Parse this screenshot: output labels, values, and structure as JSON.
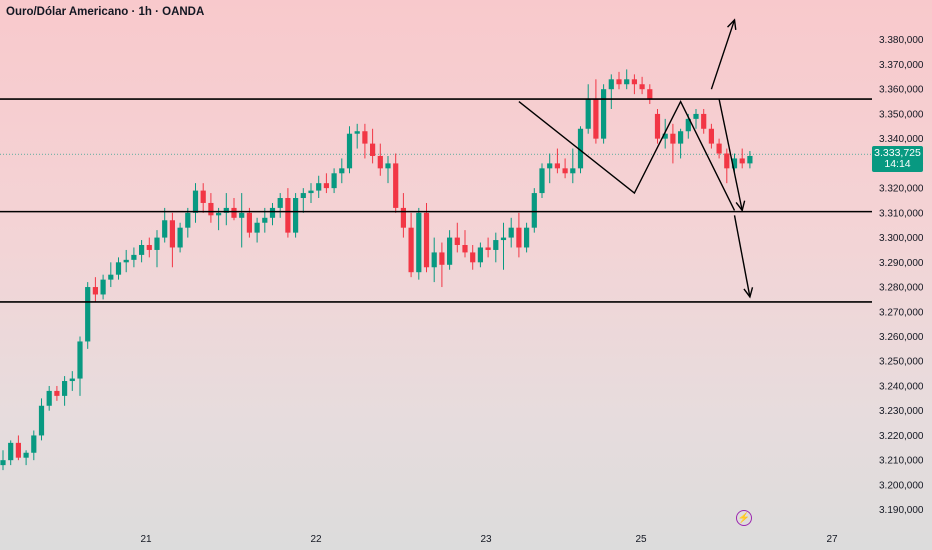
{
  "chart_title": "Ouro/Dólar Americano · 1h · OANDA",
  "current_price": {
    "value_label": "3.333,725",
    "countdown": "14:14",
    "value": 3333.725
  },
  "colors": {
    "up": "#089981",
    "down": "#f23645",
    "line": "#000000",
    "text": "#131722",
    "tag": "#089981"
  },
  "icons": {
    "alert": "lightning-icon"
  },
  "chart_data": {
    "type": "candlestick",
    "y_axis": {
      "min": 3185,
      "max": 3390,
      "ticks": [
        3190,
        3200,
        3210,
        3220,
        3230,
        3240,
        3250,
        3260,
        3270,
        3280,
        3290,
        3300,
        3310,
        3320,
        3330,
        3340,
        3350,
        3360,
        3370,
        3380
      ],
      "tick_labels": [
        "3.190,000",
        "3.200,000",
        "3.210,000",
        "3.220,000",
        "3.230,000",
        "3.240,000",
        "3.250,000",
        "3.260,000",
        "3.270,000",
        "3.280,000",
        "3.290,000",
        "3.300,000",
        "3.310,000",
        "3.320,000",
        "3.330,000",
        "3.340,000",
        "3.350,000",
        "3.360,000",
        "3.370,000",
        "3.380,000"
      ]
    },
    "x_axis": {
      "ticks": [
        21,
        22,
        23,
        25,
        27
      ],
      "tick_labels": [
        "21",
        "22",
        "23",
        "25",
        "27"
      ]
    },
    "horizontal_levels": [
      3356,
      3310.5,
      3274
    ],
    "candles": [
      [
        3208,
        3214,
        3206,
        3210
      ],
      [
        3210,
        3218,
        3208,
        3217
      ],
      [
        3217,
        3220,
        3210,
        3211
      ],
      [
        3211,
        3214,
        3208,
        3213
      ],
      [
        3213,
        3222,
        3210,
        3220
      ],
      [
        3220,
        3235,
        3218,
        3232
      ],
      [
        3232,
        3240,
        3230,
        3238
      ],
      [
        3238,
        3240,
        3234,
        3236
      ],
      [
        3236,
        3244,
        3232,
        3242
      ],
      [
        3242,
        3246,
        3238,
        3243
      ],
      [
        3243,
        3260,
        3236,
        3258
      ],
      [
        3258,
        3282,
        3255,
        3280
      ],
      [
        3280,
        3284,
        3274,
        3277
      ],
      [
        3277,
        3285,
        3275,
        3283
      ],
      [
        3283,
        3290,
        3280,
        3285
      ],
      [
        3285,
        3292,
        3283,
        3290
      ],
      [
        3290,
        3295,
        3286,
        3291
      ],
      [
        3291,
        3296,
        3288,
        3293
      ],
      [
        3293,
        3299,
        3290,
        3297
      ],
      [
        3297,
        3300,
        3292,
        3295
      ],
      [
        3295,
        3303,
        3288,
        3300
      ],
      [
        3300,
        3312,
        3298,
        3307
      ],
      [
        3307,
        3310,
        3288,
        3296
      ],
      [
        3296,
        3306,
        3294,
        3304
      ],
      [
        3304,
        3312,
        3300,
        3310
      ],
      [
        3310,
        3322,
        3306,
        3319
      ],
      [
        3319,
        3322,
        3310,
        3314
      ],
      [
        3314,
        3318,
        3306,
        3309
      ],
      [
        3309,
        3312,
        3303,
        3310
      ],
      [
        3310,
        3318,
        3305,
        3312
      ],
      [
        3312,
        3316,
        3307,
        3308
      ],
      [
        3308,
        3318,
        3296,
        3310
      ],
      [
        3310,
        3312,
        3300,
        3302
      ],
      [
        3302,
        3308,
        3298,
        3306
      ],
      [
        3306,
        3312,
        3302,
        3308
      ],
      [
        3308,
        3314,
        3305,
        3312
      ],
      [
        3312,
        3318,
        3308,
        3316
      ],
      [
        3316,
        3320,
        3300,
        3302
      ],
      [
        3302,
        3318,
        3300,
        3316
      ],
      [
        3316,
        3320,
        3310,
        3318
      ],
      [
        3318,
        3322,
        3314,
        3319
      ],
      [
        3319,
        3325,
        3316,
        3322
      ],
      [
        3322,
        3326,
        3318,
        3320
      ],
      [
        3320,
        3328,
        3318,
        3326
      ],
      [
        3326,
        3332,
        3322,
        3328
      ],
      [
        3328,
        3345,
        3326,
        3342
      ],
      [
        3342,
        3346,
        3336,
        3343
      ],
      [
        3343,
        3346,
        3332,
        3338
      ],
      [
        3338,
        3344,
        3330,
        3333
      ],
      [
        3333,
        3338,
        3325,
        3328
      ],
      [
        3328,
        3333,
        3322,
        3330
      ],
      [
        3330,
        3334,
        3310,
        3312
      ],
      [
        3312,
        3318,
        3300,
        3304
      ],
      [
        3304,
        3310,
        3284,
        3286
      ],
      [
        3286,
        3312,
        3283,
        3310
      ],
      [
        3310,
        3314,
        3286,
        3288
      ],
      [
        3288,
        3300,
        3282,
        3294
      ],
      [
        3294,
        3298,
        3280,
        3289
      ],
      [
        3289,
        3303,
        3287,
        3300
      ],
      [
        3300,
        3306,
        3294,
        3297
      ],
      [
        3297,
        3303,
        3292,
        3294
      ],
      [
        3294,
        3297,
        3287,
        3290
      ],
      [
        3290,
        3298,
        3288,
        3296
      ],
      [
        3296,
        3300,
        3292,
        3295
      ],
      [
        3295,
        3302,
        3290,
        3299
      ],
      [
        3299,
        3306,
        3287,
        3300
      ],
      [
        3300,
        3308,
        3296,
        3304
      ],
      [
        3304,
        3310,
        3292,
        3296
      ],
      [
        3296,
        3306,
        3294,
        3304
      ],
      [
        3304,
        3320,
        3302,
        3318
      ],
      [
        3318,
        3330,
        3316,
        3328
      ],
      [
        3328,
        3334,
        3322,
        3330
      ],
      [
        3330,
        3336,
        3326,
        3328
      ],
      [
        3328,
        3332,
        3324,
        3326
      ],
      [
        3326,
        3336,
        3322,
        3328
      ],
      [
        3328,
        3345,
        3326,
        3344
      ],
      [
        3344,
        3362,
        3342,
        3356
      ],
      [
        3356,
        3364,
        3338,
        3340
      ],
      [
        3340,
        3362,
        3338,
        3360
      ],
      [
        3360,
        3366,
        3352,
        3364
      ],
      [
        3364,
        3367,
        3360,
        3362
      ],
      [
        3362,
        3368,
        3360,
        3364
      ],
      [
        3364,
        3366,
        3358,
        3362
      ],
      [
        3362,
        3365,
        3358,
        3360
      ],
      [
        3360,
        3362,
        3354,
        3356
      ],
      [
        3350,
        3352,
        3338,
        3340
      ],
      [
        3340,
        3348,
        3336,
        3342
      ],
      [
        3342,
        3346,
        3330,
        3338
      ],
      [
        3338,
        3344,
        3332,
        3343
      ],
      [
        3343,
        3350,
        3340,
        3348
      ],
      [
        3348,
        3352,
        3344,
        3350
      ],
      [
        3350,
        3352,
        3342,
        3344
      ],
      [
        3344,
        3346,
        3336,
        3338
      ],
      [
        3338,
        3340,
        3332,
        3334
      ],
      [
        3334,
        3336,
        3322,
        3328
      ],
      [
        3328,
        3334,
        3326,
        3332
      ],
      [
        3332,
        3336,
        3328,
        3330
      ],
      [
        3330,
        3335,
        3328,
        3333
      ]
    ],
    "drawn_path": [
      [
        67,
        3355
      ],
      [
        82,
        3318
      ],
      [
        88,
        3355
      ],
      [
        95,
        3311
      ]
    ],
    "arrows": [
      {
        "from": [
          92,
          3360
        ],
        "to": [
          95,
          3388
        ]
      },
      {
        "from": [
          93,
          3356
        ],
        "to": [
          96,
          3311
        ]
      },
      {
        "from": [
          95,
          3309
        ],
        "to": [
          97,
          3276
        ]
      }
    ]
  }
}
